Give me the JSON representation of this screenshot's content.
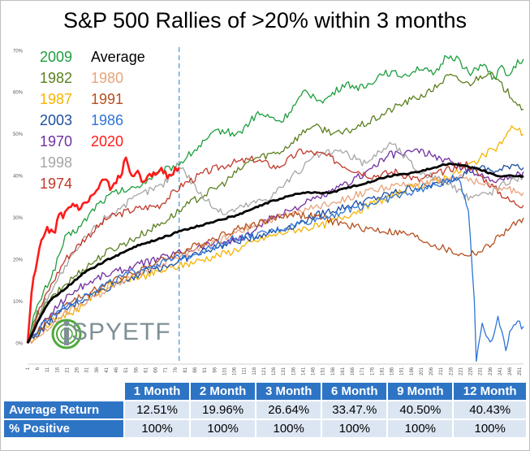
{
  "chart_data": {
    "type": "line",
    "title": "S&P 500 Rallies of >20% within 3 months",
    "y_ticks": [
      "0%",
      "10%",
      "20%",
      "30%",
      "40%",
      "50%",
      "60%",
      "70%"
    ],
    "ylim": [
      -0.05,
      0.72
    ],
    "x_ticks": [
      "1",
      "6",
      "11",
      "16",
      "21",
      "26",
      "31",
      "36",
      "41",
      "46",
      "51",
      "56",
      "61",
      "66",
      "71",
      "76",
      "81",
      "86",
      "91",
      "96",
      "101",
      "106",
      "111",
      "116",
      "121",
      "126",
      "131",
      "136",
      "141",
      "146",
      "151",
      "156",
      "161",
      "166",
      "171",
      "176",
      "181",
      "186",
      "191",
      "196",
      "201",
      "206",
      "211",
      "216",
      "221",
      "226",
      "231",
      "236",
      "241",
      "246",
      "251"
    ],
    "xlim": [
      1,
      253
    ],
    "vline_x": 78,
    "series": [
      {
        "name": "2009",
        "color": "#1e9e3e",
        "width": 1.3,
        "x": [
          1,
          4,
          8,
          14,
          20,
          28,
          36,
          45,
          55,
          65,
          78,
          88,
          98,
          108,
          118,
          130,
          142,
          152,
          162,
          172,
          182,
          192,
          200,
          208,
          214,
          220,
          226,
          232,
          238,
          242,
          246,
          250,
          253
        ],
        "y": [
          0,
          0.06,
          0.11,
          0.17,
          0.25,
          0.28,
          0.33,
          0.36,
          0.37,
          0.4,
          0.43,
          0.47,
          0.51,
          0.5,
          0.55,
          0.53,
          0.6,
          0.58,
          0.62,
          0.61,
          0.65,
          0.64,
          0.66,
          0.64,
          0.69,
          0.68,
          0.64,
          0.67,
          0.63,
          0.66,
          0.64,
          0.67,
          0.68
        ]
      },
      {
        "name": "1982",
        "color": "#5b7f1f",
        "width": 1.3,
        "x": [
          1,
          6,
          12,
          20,
          30,
          42,
          55,
          70,
          85,
          100,
          115,
          130,
          145,
          160,
          175,
          190,
          205,
          215,
          225,
          235,
          245,
          253
        ],
        "y": [
          0,
          0.07,
          0.1,
          0.14,
          0.18,
          0.22,
          0.25,
          0.29,
          0.34,
          0.38,
          0.44,
          0.46,
          0.52,
          0.5,
          0.53,
          0.57,
          0.6,
          0.64,
          0.62,
          0.65,
          0.6,
          0.56
        ]
      },
      {
        "name": "1987",
        "color": "#f5b400",
        "width": 1.3,
        "x": [
          1,
          8,
          16,
          26,
          36,
          48,
          60,
          75,
          90,
          105,
          120,
          135,
          150,
          165,
          180,
          195,
          210,
          220,
          230,
          240,
          248,
          253
        ],
        "y": [
          0,
          0.03,
          0.06,
          0.08,
          0.12,
          0.15,
          0.16,
          0.18,
          0.2,
          0.22,
          0.25,
          0.27,
          0.28,
          0.31,
          0.34,
          0.37,
          0.39,
          0.41,
          0.44,
          0.47,
          0.52,
          0.5
        ]
      },
      {
        "name": "2003",
        "color": "#1f4fa0",
        "width": 1.3,
        "x": [
          1,
          10,
          20,
          32,
          45,
          60,
          75,
          90,
          105,
          120,
          135,
          150,
          165,
          180,
          195,
          210,
          220,
          230,
          240,
          248,
          253
        ],
        "y": [
          0,
          0.04,
          0.08,
          0.11,
          0.14,
          0.17,
          0.19,
          0.22,
          0.24,
          0.26,
          0.28,
          0.31,
          0.33,
          0.35,
          0.37,
          0.38,
          0.4,
          0.42,
          0.41,
          0.43,
          0.42
        ]
      },
      {
        "name": "1970",
        "color": "#7030a0",
        "width": 1.3,
        "x": [
          1,
          8,
          16,
          26,
          38,
          52,
          66,
          80,
          95,
          110,
          125,
          140,
          155,
          170,
          185,
          200,
          212,
          222,
          232,
          242,
          253
        ],
        "y": [
          0,
          0.04,
          0.09,
          0.13,
          0.16,
          0.18,
          0.2,
          0.22,
          0.24,
          0.25,
          0.3,
          0.33,
          0.36,
          0.4,
          0.45,
          0.46,
          0.44,
          0.42,
          0.4,
          0.39,
          0.41
        ]
      },
      {
        "name": "1998",
        "color": "#a6a6a6",
        "width": 1.3,
        "x": [
          1,
          6,
          12,
          20,
          30,
          40,
          50,
          60,
          70,
          78,
          90,
          100,
          112,
          124,
          136,
          148,
          160,
          172,
          186,
          200,
          212,
          224,
          236,
          246,
          253
        ],
        "y": [
          0,
          0.06,
          0.12,
          0.18,
          0.25,
          0.3,
          0.33,
          0.36,
          0.38,
          0.43,
          0.35,
          0.31,
          0.33,
          0.35,
          0.4,
          0.45,
          0.46,
          0.43,
          0.48,
          0.41,
          0.39,
          0.35,
          0.36,
          0.39,
          0.4
        ]
      },
      {
        "name": "1974",
        "color": "#c0392b",
        "width": 1.3,
        "x": [
          1,
          6,
          12,
          20,
          30,
          42,
          55,
          68,
          80,
          92,
          104,
          116,
          128,
          140,
          152,
          164,
          176,
          188,
          200,
          212,
          224,
          236,
          246,
          253
        ],
        "y": [
          0,
          0.07,
          0.13,
          0.2,
          0.25,
          0.3,
          0.32,
          0.33,
          0.38,
          0.41,
          0.43,
          0.44,
          0.42,
          0.46,
          0.45,
          0.42,
          0.4,
          0.41,
          0.39,
          0.41,
          0.43,
          0.38,
          0.34,
          0.33
        ]
      },
      {
        "name": "1980",
        "color": "#e8a47c",
        "width": 1.3,
        "x": [
          1,
          10,
          20,
          32,
          45,
          60,
          75,
          90,
          105,
          120,
          135,
          150,
          165,
          180,
          195,
          210,
          222,
          232,
          242,
          253
        ],
        "y": [
          0,
          0.03,
          0.07,
          0.1,
          0.14,
          0.17,
          0.2,
          0.23,
          0.26,
          0.29,
          0.31,
          0.33,
          0.35,
          0.37,
          0.38,
          0.39,
          0.4,
          0.38,
          0.37,
          0.36
        ]
      },
      {
        "name": "1991",
        "color": "#b5501e",
        "width": 1.3,
        "x": [
          1,
          10,
          20,
          32,
          45,
          60,
          75,
          90,
          105,
          120,
          135,
          150,
          165,
          180,
          195,
          210,
          222,
          232,
          242,
          253
        ],
        "y": [
          0,
          0.05,
          0.09,
          0.12,
          0.15,
          0.18,
          0.21,
          0.24,
          0.27,
          0.29,
          0.31,
          0.3,
          0.28,
          0.27,
          0.26,
          0.23,
          0.21,
          0.22,
          0.26,
          0.3
        ]
      },
      {
        "name": "1986",
        "color": "#2e75d6",
        "width": 1.3,
        "x": [
          1,
          10,
          20,
          32,
          45,
          60,
          75,
          90,
          105,
          120,
          135,
          150,
          165,
          180,
          195,
          210,
          220,
          225,
          228,
          229,
          232,
          236,
          240,
          244,
          248,
          253
        ],
        "y": [
          0,
          0.05,
          0.09,
          0.12,
          0.15,
          0.18,
          0.2,
          0.22,
          0.25,
          0.26,
          0.28,
          0.3,
          0.32,
          0.34,
          0.36,
          0.38,
          0.4,
          0.32,
          0.1,
          -0.04,
          0.05,
          0.0,
          0.06,
          -0.01,
          0.05,
          0.04
        ]
      },
      {
        "name": "2020",
        "color": "#ff1a1a",
        "width": 2.6,
        "x": [
          1,
          3,
          5,
          8,
          11,
          14,
          17,
          20,
          24,
          28,
          32,
          36,
          40,
          44,
          48,
          51,
          54,
          57,
          60,
          63,
          66,
          69,
          72,
          75,
          78
        ],
        "y": [
          0,
          0.12,
          0.18,
          0.24,
          0.27,
          0.26,
          0.3,
          0.31,
          0.33,
          0.32,
          0.34,
          0.36,
          0.39,
          0.37,
          0.4,
          0.44,
          0.4,
          0.42,
          0.38,
          0.41,
          0.4,
          0.42,
          0.4,
          0.41,
          0.42
        ]
      },
      {
        "name": "Average",
        "color": "#000000",
        "width": 2.8,
        "x": [
          1,
          6,
          12,
          20,
          30,
          42,
          55,
          68,
          80,
          95,
          110,
          125,
          140,
          155,
          170,
          185,
          200,
          215,
          228,
          240,
          253
        ],
        "y": [
          0,
          0.05,
          0.1,
          0.13,
          0.17,
          0.2,
          0.23,
          0.25,
          0.27,
          0.29,
          0.31,
          0.34,
          0.36,
          0.36,
          0.38,
          0.4,
          0.41,
          0.43,
          0.42,
          0.4,
          0.4
        ]
      }
    ]
  },
  "legend": {
    "col1": [
      {
        "label": "2009",
        "color": "#1e9e3e"
      },
      {
        "label": "1982",
        "color": "#5b7f1f"
      },
      {
        "label": "1987",
        "color": "#f5b400"
      },
      {
        "label": "2003",
        "color": "#1f4fa0"
      },
      {
        "label": "1970",
        "color": "#7030a0"
      },
      {
        "label": "1998",
        "color": "#a6a6a6"
      },
      {
        "label": "1974",
        "color": "#c0392b"
      }
    ],
    "col2": [
      {
        "label": "Average",
        "color": "#000000"
      },
      {
        "label": "1980",
        "color": "#e8a47c"
      },
      {
        "label": "1991",
        "color": "#b5501e"
      },
      {
        "label": "1986",
        "color": "#2e75d6"
      },
      {
        "label": "2020",
        "color": "#ff1a1a"
      }
    ]
  },
  "logo": {
    "text": "SPYETF",
    "prefix": "i"
  },
  "table": {
    "headers": [
      "1 Month",
      "2 Month",
      "3 Month",
      "6 Month",
      "9 Month",
      "12 Month"
    ],
    "rows": [
      {
        "label": "Average Return",
        "values": [
          "12.51%",
          "19.96%",
          "26.64%",
          "33.47.%",
          "40.50%",
          "40.43%"
        ]
      },
      {
        "label": "% Positive",
        "values": [
          "100%",
          "100%",
          "100%",
          "100%",
          "100%",
          "100%"
        ]
      }
    ]
  }
}
